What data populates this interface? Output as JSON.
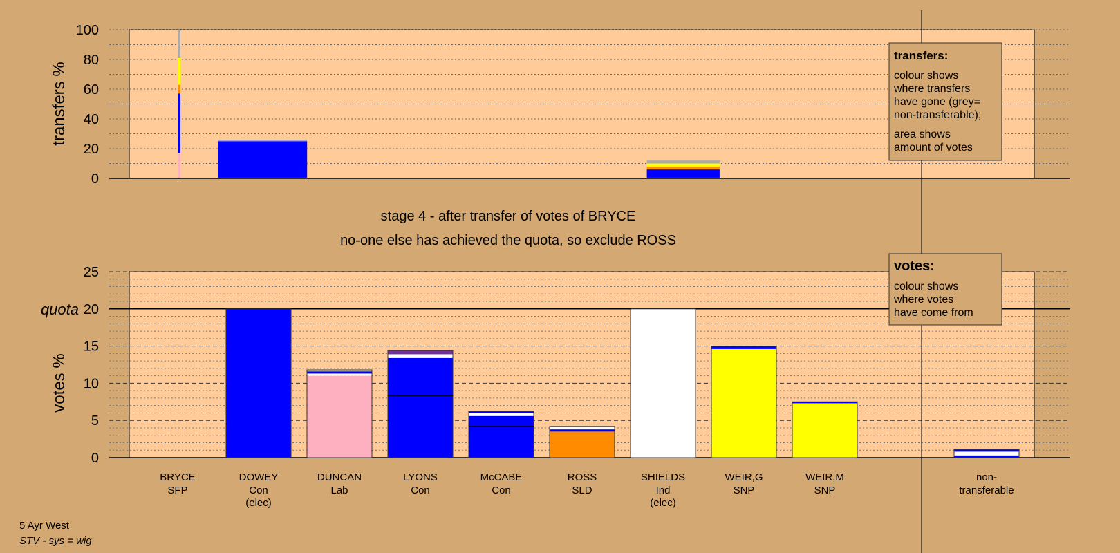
{
  "chart_data": [
    {
      "type": "bar",
      "title": "",
      "ylabel": "transfers %",
      "ylim": [
        0,
        100
      ],
      "yticks": [
        "0",
        "20",
        "40",
        "60",
        "80",
        "100"
      ],
      "legend": {
        "title": "transfers:",
        "lines": [
          "colour shows",
          "where transfers",
          "have gone (grey=",
          "non-transferable);"
        ],
        "lines2": [
          "area shows",
          "amount of votes"
        ]
      },
      "bars": [
        {
          "name": "bryce-stack",
          "x_from": 0.5,
          "x_to": 0.52,
          "segments": [
            {
              "color": "#ffb0c0",
              "from": 0,
              "to": 17
            },
            {
              "color": "#0000ff",
              "from": 17,
              "to": 57
            },
            {
              "color": "#ff8c00",
              "from": 57,
              "to": 63
            },
            {
              "color": "#ffff00",
              "from": 63,
              "to": 81
            },
            {
              "color": "#aaaaaa",
              "from": 81,
              "to": 100
            }
          ]
        },
        {
          "name": "to-dowey",
          "x_from": 1.0,
          "x_to": 2.1,
          "segments": [
            {
              "color": "#ffb0c0",
              "from": 0,
              "to": 0.5
            },
            {
              "color": "#0000ff",
              "from": 0.5,
              "to": 25
            },
            {
              "color": "#aaaaaa",
              "from": 25,
              "to": 26
            }
          ]
        },
        {
          "name": "to-shields-area",
          "x_from": 6.3,
          "x_to": 7.2,
          "segments": [
            {
              "color": "#ffb0c0",
              "from": 0,
              "to": 0.5
            },
            {
              "color": "#0000ff",
              "from": 0.5,
              "to": 6
            },
            {
              "color": "#ff8c00",
              "from": 6,
              "to": 8
            },
            {
              "color": "#ffff00",
              "from": 8,
              "to": 10
            },
            {
              "color": "#aaaaaa",
              "from": 10,
              "to": 12
            }
          ]
        }
      ]
    },
    {
      "type": "bar",
      "title": "stage 4 - after transfer of votes of BRYCE",
      "subtitle": "no-one else has achieved the quota, so exclude ROSS",
      "ylabel": "votes %",
      "ylim": [
        0,
        25
      ],
      "yticks": [
        "0",
        "5",
        "10",
        "15",
        "20",
        "25"
      ],
      "quota": {
        "label": "quota",
        "value": 20,
        "tick": "20"
      },
      "legend": {
        "title": "votes:",
        "lines": [
          "colour shows",
          "where votes",
          "have come from"
        ]
      },
      "categories": [
        {
          "name": "BRYCE",
          "party": "SFP",
          "extra": ""
        },
        {
          "name": "DOWEY",
          "party": "Con",
          "extra": "(elec)"
        },
        {
          "name": "DUNCAN",
          "party": "Lab",
          "extra": ""
        },
        {
          "name": "LYONS",
          "party": "Con",
          "extra": ""
        },
        {
          "name": "McCABE",
          "party": "Con",
          "extra": ""
        },
        {
          "name": "ROSS",
          "party": "SLD",
          "extra": ""
        },
        {
          "name": "SHIELDS",
          "party": "Ind",
          "extra": "(elec)"
        },
        {
          "name": "WEIR,G",
          "party": "SNP",
          "extra": ""
        },
        {
          "name": "WEIR,M",
          "party": "SNP",
          "extra": ""
        },
        {
          "name": "non-",
          "party": "transferable",
          "extra": ""
        }
      ],
      "values": [
        0,
        20,
        11.8,
        14.4,
        6.2,
        4.2,
        20,
        15,
        7.5,
        1.1
      ],
      "stacks": [
        [],
        [
          {
            "color": "#0000ff",
            "from": 0,
            "to": 20
          }
        ],
        [
          {
            "color": "#ffb0c0",
            "from": 0,
            "to": 11
          },
          {
            "color": "#ffffff",
            "from": 11,
            "to": 11.3
          },
          {
            "color": "#0000ff",
            "from": 11.3,
            "to": 11.6
          },
          {
            "color": "#ffffff",
            "from": 11.6,
            "to": 11.8
          }
        ],
        [
          {
            "color": "#0000ff",
            "from": 0,
            "to": 13.4
          },
          {
            "color": "#ffffff",
            "from": 13.4,
            "to": 13.9
          },
          {
            "color": "#7030a0",
            "from": 13.9,
            "to": 14.4
          }
        ],
        [
          {
            "color": "#0000ff",
            "from": 0,
            "to": 5.6
          },
          {
            "color": "#ffffff",
            "from": 5.6,
            "to": 6.0
          },
          {
            "color": "#0000ff",
            "from": 6.0,
            "to": 6.2
          }
        ],
        [
          {
            "color": "#ff8c00",
            "from": 0,
            "to": 3.5
          },
          {
            "color": "#0000ff",
            "from": 3.5,
            "to": 3.8
          },
          {
            "color": "#ffffff",
            "from": 3.8,
            "to": 4.2
          }
        ],
        [
          {
            "color": "#ffffff",
            "from": 0,
            "to": 20
          }
        ],
        [
          {
            "color": "#ffff00",
            "from": 0,
            "to": 14.6
          },
          {
            "color": "#0000ff",
            "from": 14.6,
            "to": 15
          }
        ],
        [
          {
            "color": "#ffff00",
            "from": 0,
            "to": 7.3
          },
          {
            "color": "#0000ff",
            "from": 7.3,
            "to": 7.5
          }
        ],
        [
          {
            "color": "#0000ff",
            "from": 0,
            "to": 0.3
          },
          {
            "color": "#ffffff",
            "from": 0.3,
            "to": 0.8
          },
          {
            "color": "#0000ff",
            "from": 0.8,
            "to": 1.1
          }
        ]
      ],
      "inner_lines": [
        {
          "category": 3,
          "value": 8.3
        },
        {
          "category": 4,
          "value": 4.2
        }
      ]
    }
  ],
  "footer": {
    "line1": "5 Ayr West",
    "line2": "STV - sys = wig"
  },
  "colors": {
    "background": "#d4a872",
    "plot_area": "#ffcc99",
    "legend_box": "#d4a872"
  }
}
